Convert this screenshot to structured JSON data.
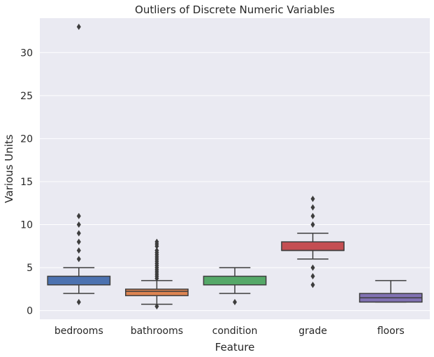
{
  "chart_data": {
    "type": "box",
    "title": "Outliers of Discrete Numeric Variables",
    "xlabel": "Feature",
    "ylabel": "Various Units",
    "ylim": [
      -1,
      34
    ],
    "yticks": [
      0,
      5,
      10,
      15,
      20,
      25,
      30
    ],
    "grid": true,
    "background": "#EAEAF2",
    "categories": [
      "bedrooms",
      "bathrooms",
      "condition",
      "grade",
      "floors"
    ],
    "boxes": [
      {
        "name": "bedrooms",
        "color": "#4C72B0",
        "whisker_low": 2,
        "q1": 3,
        "median": 3,
        "q3": 4,
        "whisker_high": 5,
        "outliers": [
          1,
          6,
          7,
          8,
          9,
          10,
          11,
          33
        ]
      },
      {
        "name": "bathrooms",
        "color": "#DD8452",
        "whisker_low": 0.75,
        "q1": 1.75,
        "median": 2.25,
        "q3": 2.5,
        "whisker_high": 3.5,
        "outliers": [
          0.5,
          3.75,
          4,
          4.25,
          4.5,
          4.75,
          5,
          5.25,
          5.5,
          5.75,
          6,
          6.25,
          6.5,
          6.75,
          7,
          7.5,
          7.75,
          8
        ]
      },
      {
        "name": "condition",
        "color": "#55A868",
        "whisker_low": 2,
        "q1": 3,
        "median": 3,
        "q3": 4,
        "whisker_high": 5,
        "outliers": [
          1
        ]
      },
      {
        "name": "grade",
        "color": "#C44E52",
        "whisker_low": 6,
        "q1": 7,
        "median": 7,
        "q3": 8,
        "whisker_high": 9,
        "outliers": [
          3,
          4,
          5,
          10,
          11,
          12,
          13
        ]
      },
      {
        "name": "floors",
        "color": "#8172B3",
        "whisker_low": 1,
        "q1": 1,
        "median": 1.5,
        "q3": 2,
        "whisker_high": 3.5,
        "outliers": []
      }
    ]
  }
}
